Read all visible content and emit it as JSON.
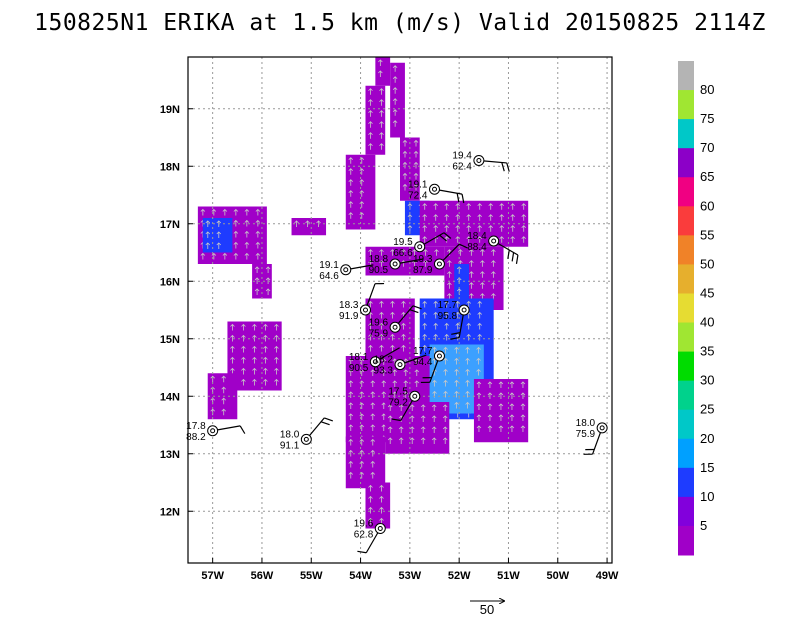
{
  "title": "150825N1 ERIKA at 1.5 km (m/s) Valid 20150825 2114Z",
  "map": {
    "lon_range": [
      -57.5,
      -48.9
    ],
    "lat_range": [
      11.1,
      19.9
    ],
    "lon_ticks": [
      {
        "lon": -57,
        "label": "57W"
      },
      {
        "lon": -56,
        "label": "56W"
      },
      {
        "lon": -55,
        "label": "55W"
      },
      {
        "lon": -54,
        "label": "54W"
      },
      {
        "lon": -53,
        "label": "53W"
      },
      {
        "lon": -52,
        "label": "52W"
      },
      {
        "lon": -51,
        "label": "51W"
      },
      {
        "lon": -50,
        "label": "50W"
      },
      {
        "lon": -49,
        "label": "49W"
      }
    ],
    "lat_ticks": [
      {
        "lat": 12,
        "label": "12N"
      },
      {
        "lat": 13,
        "label": "13N"
      },
      {
        "lat": 14,
        "label": "14N"
      },
      {
        "lat": 15,
        "label": "15N"
      },
      {
        "lat": 16,
        "label": "16N"
      },
      {
        "lat": 17,
        "label": "17N"
      },
      {
        "lat": 18,
        "label": "18N"
      },
      {
        "lat": 19,
        "label": "19N"
      }
    ],
    "grid": true,
    "grid_style": "dotted"
  },
  "colorbar": {
    "labels": [
      "5",
      "10",
      "15",
      "20",
      "25",
      "30",
      "35",
      "40",
      "45",
      "50",
      "55",
      "60",
      "65",
      "70",
      "75",
      "80"
    ],
    "colors": [
      "#a000c8",
      "#8200dc",
      "#1e3cff",
      "#00a0ff",
      "#00c8c8",
      "#00d28c",
      "#00dc00",
      "#a0e632",
      "#e6dc32",
      "#e6af2d",
      "#f08228",
      "#fa3c3c",
      "#f00082",
      "#8c00c8",
      "#00c8c8",
      "#a0e632",
      "#b4b4b4"
    ]
  },
  "swath": [
    {
      "lat_range": [
        19.4,
        19.9
      ],
      "lon_range": [
        -53.7,
        -53.4
      ],
      "level": 1
    },
    {
      "lat_range": [
        18.2,
        19.4
      ],
      "lon_range": [
        -53.9,
        -53.5
      ],
      "level": 1
    },
    {
      "lat_range": [
        16.9,
        18.2
      ],
      "lon_range": [
        -54.3,
        -53.7
      ],
      "level": 1
    },
    {
      "lat_range": [
        18.5,
        19.8
      ],
      "lon_range": [
        -53.4,
        -53.1
      ],
      "level": 1
    },
    {
      "lat_range": [
        17.4,
        18.5
      ],
      "lon_range": [
        -53.2,
        -52.8
      ],
      "level": 1
    },
    {
      "lat_range": [
        16.8,
        17.4
      ],
      "lon_range": [
        -53.1,
        -52.6
      ],
      "level": 2
    },
    {
      "lat_range": [
        16.3,
        17.3
      ],
      "lon_range": [
        -57.3,
        -55.9
      ],
      "level": 1
    },
    {
      "lat_range": [
        16.5,
        17.1
      ],
      "lon_range": [
        -57.2,
        -56.6
      ],
      "level": 2
    },
    {
      "lat_range": [
        15.7,
        16.3
      ],
      "lon_range": [
        -56.2,
        -55.8
      ],
      "level": 1
    },
    {
      "lat_range": [
        14.1,
        15.3
      ],
      "lon_range": [
        -56.7,
        -55.6
      ],
      "level": 1
    },
    {
      "lat_range": [
        13.6,
        14.4
      ],
      "lon_range": [
        -57.1,
        -56.5
      ],
      "level": 1
    },
    {
      "lat_range": [
        16.8,
        17.1
      ],
      "lon_range": [
        -55.4,
        -54.7
      ],
      "level": 1
    },
    {
      "lat_range": [
        16.1,
        16.6
      ],
      "lon_range": [
        -53.9,
        -52.3
      ],
      "level": 1
    },
    {
      "lat_range": [
        16.6,
        17.4
      ],
      "lon_range": [
        -52.8,
        -50.6
      ],
      "level": 1
    },
    {
      "lat_range": [
        15.5,
        16.6
      ],
      "lon_range": [
        -52.3,
        -51.1
      ],
      "level": 1
    },
    {
      "lat_range": [
        15.5,
        16.3
      ],
      "lon_range": [
        -52.1,
        -51.8
      ],
      "level": 2
    },
    {
      "lat_range": [
        14.7,
        15.7
      ],
      "lon_range": [
        -53.9,
        -52.9
      ],
      "level": 1
    },
    {
      "lat_range": [
        13.6,
        15.7
      ],
      "lon_range": [
        -52.8,
        -51.3
      ],
      "level": 2
    },
    {
      "lat_range": [
        13.7,
        14.9
      ],
      "lon_range": [
        -52.6,
        -51.5
      ],
      "level": 3
    },
    {
      "lat_range": [
        13.2,
        14.7
      ],
      "lon_range": [
        -54.3,
        -52.6
      ],
      "level": 1
    },
    {
      "lat_range": [
        13.0,
        13.9
      ],
      "lon_range": [
        -53.5,
        -52.2
      ],
      "level": 1
    },
    {
      "lat_range": [
        13.2,
        14.3
      ],
      "lon_range": [
        -51.7,
        -50.6
      ],
      "level": 1
    },
    {
      "lat_range": [
        12.4,
        13.3
      ],
      "lon_range": [
        -54.3,
        -53.5
      ],
      "level": 1
    },
    {
      "lat_range": [
        11.7,
        12.5
      ],
      "lon_range": [
        -53.9,
        -53.4
      ],
      "level": 1
    }
  ],
  "observations": [
    {
      "lat": 18.1,
      "lon": -51.6,
      "t": "19.4",
      "td": "62.4",
      "wind_dir": 95,
      "barbs": 2
    },
    {
      "lat": 17.6,
      "lon": -52.5,
      "t": "19.1",
      "td": "72.4",
      "wind_dir": 100,
      "barbs": 2
    },
    {
      "lat": 16.6,
      "lon": -52.8,
      "t": "19.5",
      "td": "66.6",
      "wind_dir": 60,
      "barbs": 2
    },
    {
      "lat": 16.7,
      "lon": -51.3,
      "t": "18.4",
      "td": "88.4",
      "wind_dir": 120,
      "barbs": 3
    },
    {
      "lat": 16.3,
      "lon": -53.3,
      "t": "18.8",
      "td": "90.5",
      "wind_dir": 80,
      "barbs": 0
    },
    {
      "lat": 16.3,
      "lon": -52.4,
      "t": "19.3",
      "td": "87.9",
      "wind_dir": 45,
      "barbs": 1
    },
    {
      "lat": 16.2,
      "lon": -54.3,
      "t": "19.1",
      "td": "64.6",
      "wind_dir": 80,
      "barbs": 0
    },
    {
      "lat": 15.5,
      "lon": -53.9,
      "t": "18.3",
      "td": "91.9",
      "wind_dir": 20,
      "barbs": 1
    },
    {
      "lat": 15.5,
      "lon": -51.9,
      "t": "17.7",
      "td": "95.8",
      "wind_dir": 190,
      "barbs": 2
    },
    {
      "lat": 15.2,
      "lon": -53.3,
      "t": "19.6",
      "td": "75.9",
      "wind_dir": 40,
      "barbs": 2
    },
    {
      "lat": 14.6,
      "lon": -53.7,
      "t": "18.1",
      "td": "90.5",
      "wind_dir": 60,
      "barbs": 0
    },
    {
      "lat": 14.55,
      "lon": -53.2,
      "t": "18.2",
      "td": "93.3",
      "wind_dir": 70,
      "barbs": 0
    },
    {
      "lat": 14.7,
      "lon": -52.4,
      "t": "17.7",
      "td": "94.4",
      "wind_dir": 200,
      "barbs": 2
    },
    {
      "lat": 14.0,
      "lon": -52.9,
      "t": "17.5",
      "td": "79.2",
      "wind_dir": 210,
      "barbs": 1
    },
    {
      "lat": 13.4,
      "lon": -57.0,
      "t": "17.8",
      "td": "88.2",
      "wind_dir": 80,
      "barbs": 1
    },
    {
      "lat": 13.25,
      "lon": -55.1,
      "t": "18.0",
      "td": "91.1",
      "wind_dir": 40,
      "barbs": 2
    },
    {
      "lat": 13.45,
      "lon": -49.1,
      "t": "18.0",
      "td": "75.9",
      "wind_dir": 200,
      "barbs": 2
    },
    {
      "lat": 11.7,
      "lon": -53.6,
      "t": "19.6",
      "td": "62.8",
      "wind_dir": 210,
      "barbs": 1
    }
  ],
  "scale_vector": {
    "label": "50"
  }
}
